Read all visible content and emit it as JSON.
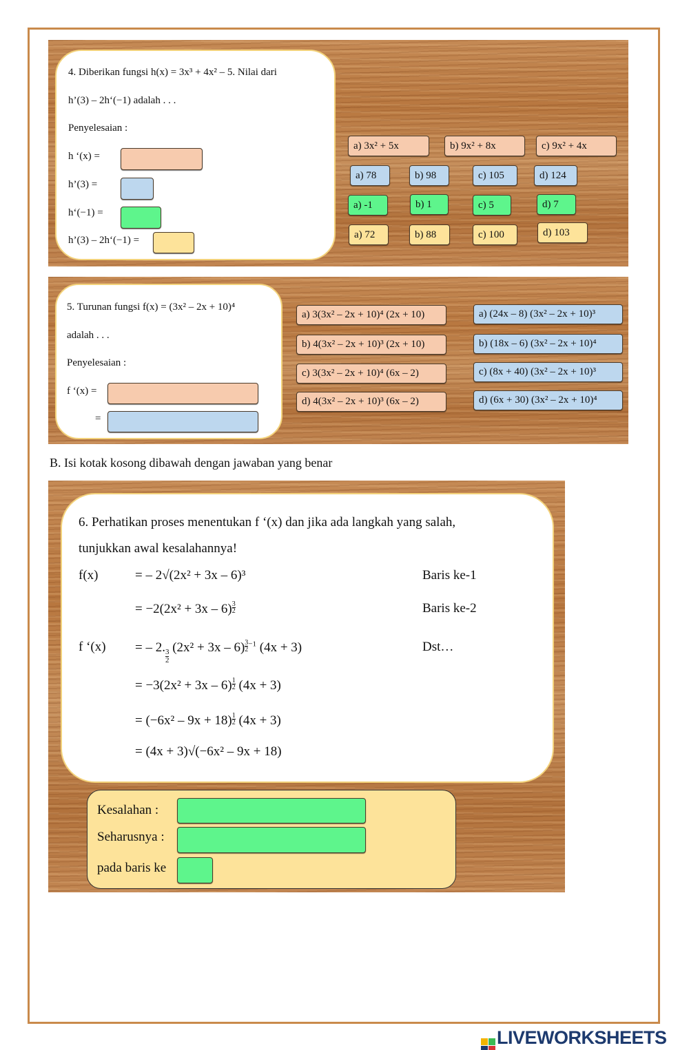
{
  "q4": {
    "line1": "4.    Diberikan fungsi h(x) = 3x³ + 4x² – 5. Nilai dari",
    "line2": "h’(3) – 2h‘(−1) adalah . . .",
    "solution_label": "Penyelesaian :",
    "rows": [
      {
        "label": "h ‘(x) ="
      },
      {
        "label": "h’(3)  ="
      },
      {
        "label": "h‘(−1) ="
      },
      {
        "label": "h’(3) – 2h‘(−1) ="
      }
    ],
    "options_hx": [
      "a)  3x² + 5x",
      "b) 9x² + 8x",
      "c) 9x² + 4x"
    ],
    "options_h3": [
      "a)  78",
      "b) 98",
      "c) 105",
      "d) 124"
    ],
    "options_hm1": [
      "a) -1",
      "b) 1",
      "c) 5",
      "d)  7"
    ],
    "options_total": [
      "a) 72",
      "b) 88",
      "c) 100",
      "d) 103"
    ]
  },
  "q5": {
    "line1": "5.   Turunan  fungsi f(x)  = (3x² – 2x + 10)⁴",
    "line2": " adalah . . .",
    "solution_label": "Penyelesaian :",
    "row1_label": "f ‘(x)  =",
    "row2_label": "=",
    "options_left": [
      "a) 3(3x² – 2x + 10)⁴ (2x + 10)",
      "b) 4(3x² – 2x + 10)³ (2x + 10)",
      "c) 3(3x² – 2x + 10)⁴ (6x – 2)",
      "d) 4(3x² – 2x + 10)³ (6x – 2)"
    ],
    "options_right": [
      "a) (24x – 8) (3x² – 2x + 10)³",
      "b) (18x – 6) (3x² – 2x + 10)⁴",
      "c) (8x + 40) (3x² – 2x + 10)³",
      "d) (6x + 30) (3x² – 2x + 10)⁴"
    ]
  },
  "section_b": "B.   Isi kotak kosong dibawah dengan jawaban yang benar",
  "q6": {
    "line1": "6.  Perhatikan proses menentukan f ‘(x) dan jika ada langkah yang salah,",
    "line2": "tunjukkan awal kesalahannya!",
    "fx_label": "f(x)",
    "fpx_label": "f ‘(x)",
    "step1": "= – 2√(2x² + 3x  –  6)³",
    "step2_base": "=  −2(2x² + 3x  –  6)",
    "step2_exp_num": "3",
    "step2_exp_den": "2",
    "step3_a": "=  – 2.",
    "step3_frac_num": "3",
    "step3_frac_den": "2",
    "step3_base": "(2x² + 3x  –  6)",
    "step3_exp": "−1",
    "step3_tail": " (4x + 3)",
    "step4_base": "=  −3(2x² + 3x  –  6)",
    "step4_exp_num": "1",
    "step4_exp_den": "2",
    "step4_tail": " (4x + 3)",
    "step5_base": "=  (−6x²  – 9x  + 18)",
    "step5_exp_num": "1",
    "step5_exp_den": "2",
    "step5_tail": " (4x + 3)",
    "step6": "=  (4x + 3)√(−6x²  – 9x  + 18)",
    "note1": "Baris ke-1",
    "note2": "Baris ke-2",
    "note3": "Dst…",
    "answer": {
      "error_label": "Kesalahan   :",
      "should_label": "Seharusnya :",
      "line_label": "pada baris ke"
    }
  },
  "brand": {
    "logo_text": "LIVEWORKSHEETS",
    "color": "#1d3a6e"
  },
  "colors": {
    "salmon": "#f7cbae",
    "blue": "#bdd7ee",
    "green": "#5ef58c",
    "yellow": "#fde39a",
    "frame": "#c98a4b"
  }
}
